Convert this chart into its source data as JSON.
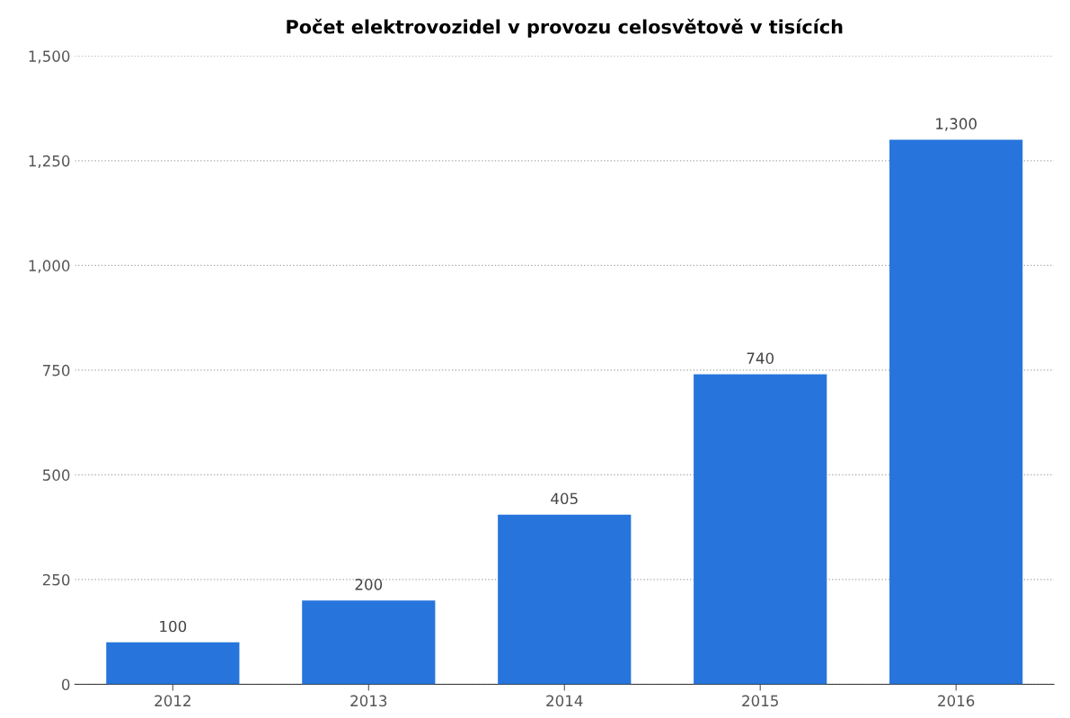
{
  "chart_data": {
    "type": "bar",
    "title": "Počet elektrovozidel v provozu celosvětově v tisících",
    "categories": [
      "2012",
      "2013",
      "2014",
      "2015",
      "2016"
    ],
    "values": [
      100,
      200,
      405,
      740,
      1300
    ],
    "value_labels": [
      "100",
      "200",
      "405",
      "740",
      "1,300"
    ],
    "color": "#2775dc",
    "ylim": [
      0,
      1500
    ],
    "yticks": [
      0,
      250,
      500,
      750,
      {
        "value": 1000,
        "label": "1,000"
      },
      {
        "value": 1250,
        "label": "1,250"
      },
      {
        "value": 1500,
        "label": "1,500"
      }
    ],
    "grid": "y"
  }
}
